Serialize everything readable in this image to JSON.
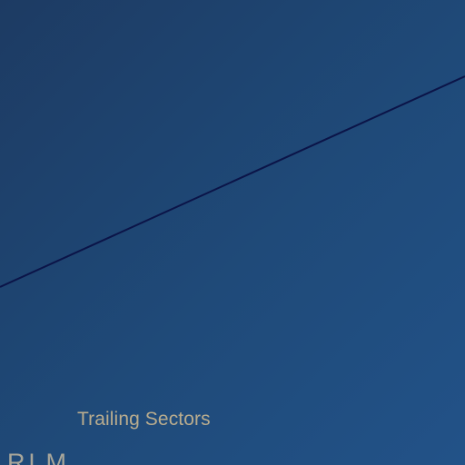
{
  "scene": {
    "caption": "Trailing Sectors",
    "brand_partial": "RLM"
  },
  "colors": {
    "background_start": "#1d3b63",
    "background_end": "#225288",
    "line": "#0b1448",
    "caption": "#b9ac8e",
    "brand": "#a8a69a"
  }
}
